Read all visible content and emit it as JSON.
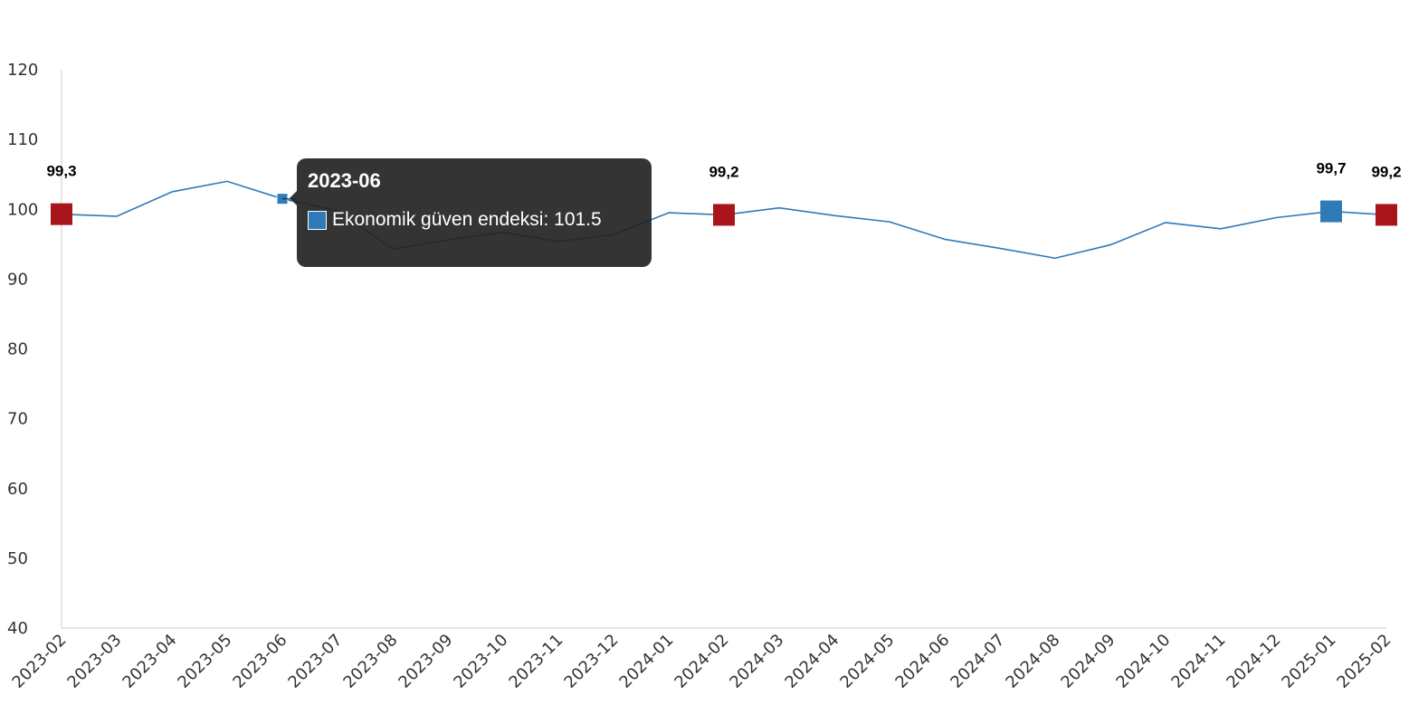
{
  "chart_data": {
    "type": "line",
    "categories": [
      "2023-02",
      "2023-03",
      "2023-04",
      "2023-05",
      "2023-06",
      "2023-07",
      "2023-08",
      "2023-09",
      "2023-10",
      "2023-11",
      "2023-12",
      "2024-01",
      "2024-02",
      "2024-03",
      "2024-04",
      "2024-05",
      "2024-06",
      "2024-07",
      "2024-08",
      "2024-09",
      "2024-10",
      "2024-11",
      "2024-12",
      "2025-01",
      "2025-02"
    ],
    "series": [
      {
        "name": "Ekonomik güven endeksi",
        "color": "#2f7ab8",
        "values": [
          99.3,
          99.0,
          102.5,
          104.0,
          101.5,
          99.8,
          94.3,
          95.6,
          96.7,
          95.4,
          96.4,
          99.5,
          99.2,
          100.2,
          99.1,
          98.2,
          95.7,
          94.4,
          93.0,
          94.9,
          98.1,
          97.2,
          98.8,
          99.7,
          99.2
        ]
      }
    ],
    "ylim": [
      40,
      120
    ],
    "yticks": [
      40,
      50,
      60,
      70,
      80,
      90,
      100,
      110,
      120
    ],
    "grid": false,
    "highlight_color": "#a8161b",
    "annotations": [
      {
        "category": "2023-02",
        "label": "99,3",
        "marker_color": "#a8161b"
      },
      {
        "category": "2024-02",
        "label": "99,2",
        "marker_color": "#a8161b"
      },
      {
        "category": "2025-01",
        "label": "99,7",
        "marker_color": "#2f7ab8"
      },
      {
        "category": "2025-02",
        "label": "99,2",
        "marker_color": "#a8161b"
      }
    ]
  },
  "tooltip": {
    "title": "2023-06",
    "series_name": "Ekonomik güven endeksi",
    "value": "101.5",
    "text": "Ekonomik güven endeksi: 101.5"
  }
}
